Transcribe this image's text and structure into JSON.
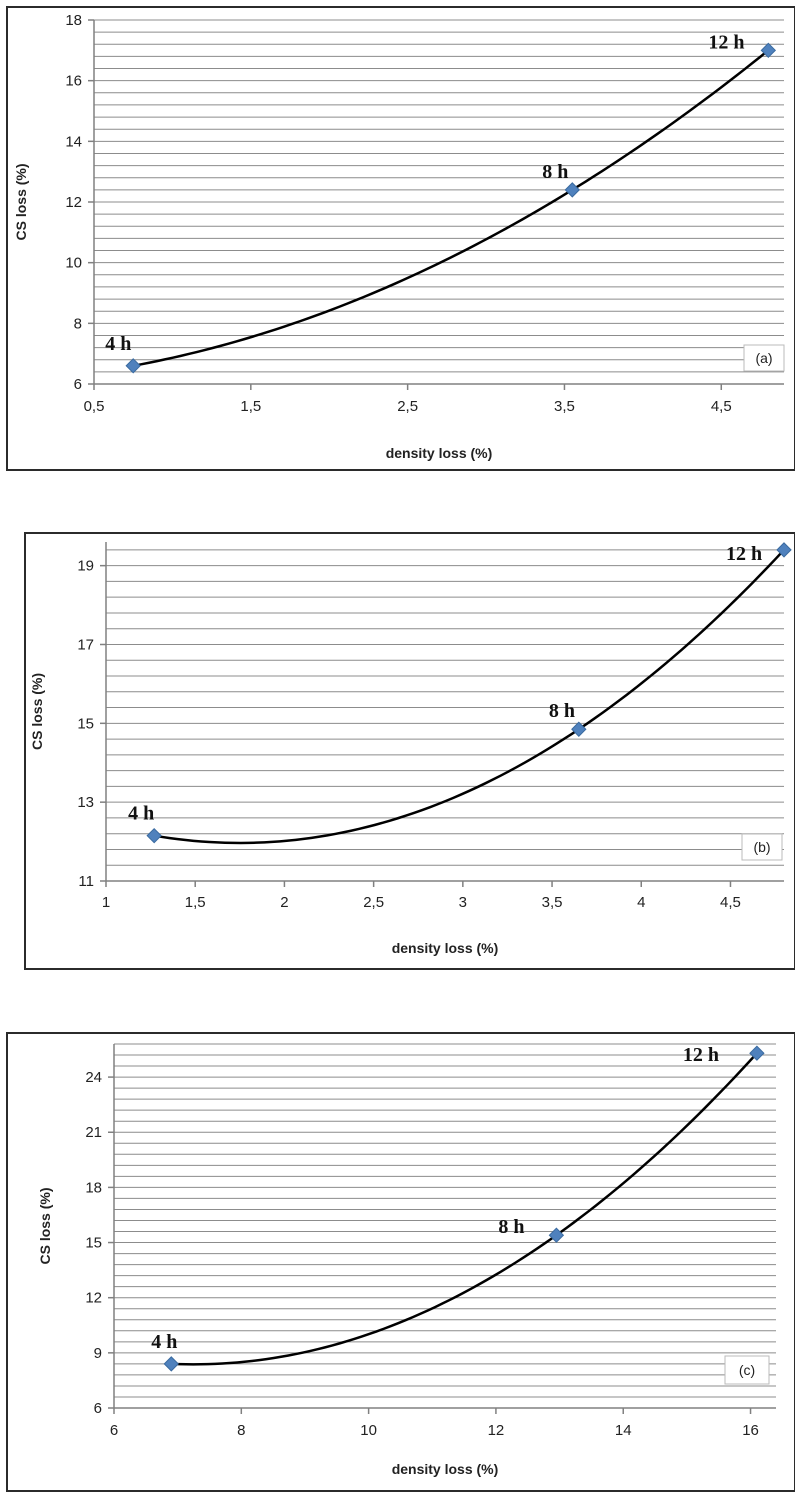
{
  "chart_data": [
    {
      "type": "scatter",
      "panel_label": "(a)",
      "xlabel": "density loss (%)",
      "ylabel": "CS loss (%)",
      "xlim": [
        0.5,
        4.9
      ],
      "ylim": [
        6,
        18
      ],
      "x_ticks": [
        0.5,
        1.5,
        2.5,
        3.5,
        4.5
      ],
      "x_tick_labels": [
        "0,5",
        "1,5",
        "2,5",
        "3,5",
        "4,5"
      ],
      "y_ticks": [
        6,
        8,
        10,
        12,
        14,
        16,
        18
      ],
      "y_tick_labels": [
        "6",
        "8",
        "10",
        "12",
        "14",
        "16",
        "18"
      ],
      "grid": "horizontal",
      "trendline": "polynomial",
      "series": [
        {
          "points": [
            {
              "x": 0.75,
              "y": 6.6,
              "label": "4 h"
            },
            {
              "x": 3.55,
              "y": 12.4,
              "label": "8 h"
            },
            {
              "x": 4.8,
              "y": 17.0,
              "label": "12 h"
            }
          ]
        }
      ]
    },
    {
      "type": "scatter",
      "panel_label": "(b)",
      "xlabel": "density loss (%)",
      "ylabel": "CS loss (%)",
      "xlim": [
        1,
        4.8
      ],
      "ylim": [
        11,
        19.6
      ],
      "x_ticks": [
        1,
        1.5,
        2,
        2.5,
        3,
        3.5,
        4,
        4.5
      ],
      "x_tick_labels": [
        "1",
        "1,5",
        "2",
        "2,5",
        "3",
        "3,5",
        "4",
        "4,5"
      ],
      "y_ticks": [
        11,
        13,
        15,
        17,
        19
      ],
      "y_tick_labels": [
        "11",
        "13",
        "15",
        "17",
        "19"
      ],
      "grid": "horizontal",
      "trendline": "polynomial",
      "series": [
        {
          "points": [
            {
              "x": 1.27,
              "y": 12.15,
              "label": "4 h"
            },
            {
              "x": 3.65,
              "y": 14.85,
              "label": "8 h"
            },
            {
              "x": 4.8,
              "y": 19.4,
              "label": "12 h"
            }
          ]
        }
      ]
    },
    {
      "type": "scatter",
      "panel_label": "(c)",
      "xlabel": "density loss (%)",
      "ylabel": "CS loss (%)",
      "xlim": [
        6,
        16.4
      ],
      "ylim": [
        6,
        25.8
      ],
      "x_ticks": [
        6,
        8,
        10,
        12,
        14,
        16
      ],
      "x_tick_labels": [
        "6",
        "8",
        "10",
        "12",
        "14",
        "16"
      ],
      "y_ticks": [
        6,
        9,
        12,
        15,
        18,
        21,
        24
      ],
      "y_tick_labels": [
        "6",
        "9",
        "12",
        "15",
        "18",
        "21",
        "24"
      ],
      "grid": "horizontal",
      "trendline": "polynomial",
      "series": [
        {
          "points": [
            {
              "x": 6.9,
              "y": 8.4,
              "label": "4 h"
            },
            {
              "x": 12.95,
              "y": 15.4,
              "label": "8 h"
            },
            {
              "x": 16.1,
              "y": 25.3,
              "label": "12 h"
            }
          ]
        }
      ]
    }
  ],
  "colors": {
    "marker": "#4f81bd",
    "trendline": "#000000",
    "gridline": "#8c8c8c"
  }
}
